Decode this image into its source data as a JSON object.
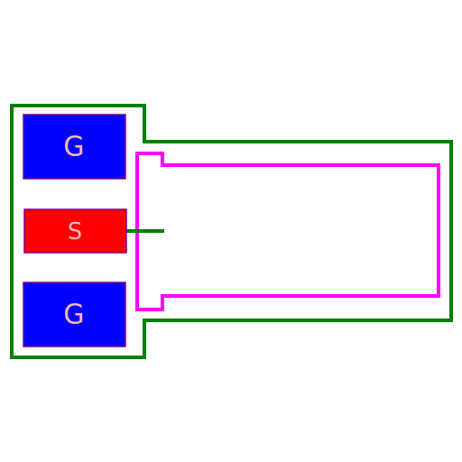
{
  "colors": {
    "background": "#ffffff",
    "courtyard_outline": "#008000",
    "body_outline": "#ff00ff",
    "gate_pad_fill": "#0000ff",
    "source_pad_fill": "#ff0000",
    "pad_border": "#800080",
    "pad_label": "#ffb6c1"
  },
  "pads": {
    "gate_top": {
      "label": "G"
    },
    "source": {
      "label": "S"
    },
    "gate_bottom": {
      "label": "G"
    }
  }
}
